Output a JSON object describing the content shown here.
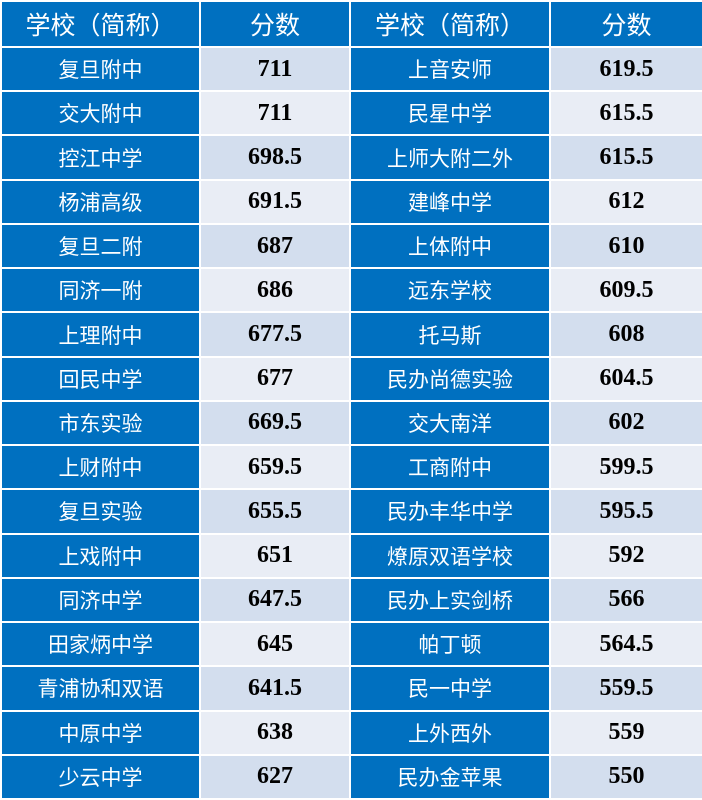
{
  "header": {
    "school": "学校（简称）",
    "score": "分数"
  },
  "colors": {
    "header_bg": "#0070C0",
    "score_bg_odd": "#D3DEEE",
    "score_bg_even": "#E9EDF5"
  },
  "rows": [
    {
      "left_school": "复旦附中",
      "left_score": "711",
      "right_school": "上音安师",
      "right_score": "619.5"
    },
    {
      "left_school": "交大附中",
      "left_score": "711",
      "right_school": "民星中学",
      "right_score": "615.5"
    },
    {
      "left_school": "控江中学",
      "left_score": "698.5",
      "right_school": "上师大附二外",
      "right_score": "615.5"
    },
    {
      "left_school": "杨浦高级",
      "left_score": "691.5",
      "right_school": "建峰中学",
      "right_score": "612"
    },
    {
      "left_school": "复旦二附",
      "left_score": "687",
      "right_school": "上体附中",
      "right_score": "610"
    },
    {
      "left_school": "同济一附",
      "left_score": "686",
      "right_school": "远东学校",
      "right_score": "609.5"
    },
    {
      "left_school": "上理附中",
      "left_score": "677.5",
      "right_school": "托马斯",
      "right_score": "608"
    },
    {
      "left_school": "回民中学",
      "left_score": "677",
      "right_school": "民办尚德实验",
      "right_score": "604.5"
    },
    {
      "left_school": "市东实验",
      "left_score": "669.5",
      "right_school": "交大南洋",
      "right_score": "602"
    },
    {
      "left_school": "上财附中",
      "left_score": "659.5",
      "right_school": "工商附中",
      "right_score": "599.5"
    },
    {
      "left_school": "复旦实验",
      "left_score": "655.5",
      "right_school": "民办丰华中学",
      "right_score": "595.5"
    },
    {
      "left_school": "上戏附中",
      "left_score": "651",
      "right_school": "燎原双语学校",
      "right_score": "592"
    },
    {
      "left_school": "同济中学",
      "left_score": "647.5",
      "right_school": "民办上实剑桥",
      "right_score": "566"
    },
    {
      "left_school": "田家炳中学",
      "left_score": "645",
      "right_school": "帕丁顿",
      "right_score": "564.5"
    },
    {
      "left_school": "青浦协和双语",
      "left_score": "641.5",
      "right_school": "民一中学",
      "right_score": "559.5"
    },
    {
      "left_school": "中原中学",
      "left_score": "638",
      "right_school": "上外西外",
      "right_score": "559"
    },
    {
      "left_school": "少云中学",
      "left_score": "627",
      "right_school": "民办金苹果",
      "right_score": "550"
    }
  ]
}
